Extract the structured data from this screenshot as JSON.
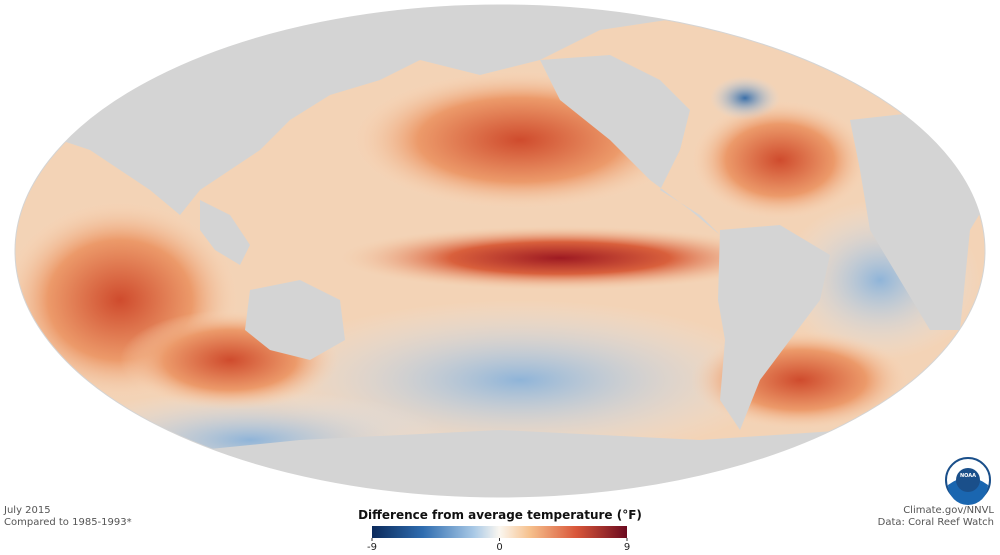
{
  "header": {
    "date": "July 2015",
    "baseline": "Compared to 1985-1993*"
  },
  "colorbar": {
    "title": "Difference from average temperature (°F)",
    "lim": [
      -9,
      9
    ],
    "ticks": [
      -9,
      0,
      9
    ]
  },
  "credits": {
    "source": "Climate.gov/NNVL",
    "data": "Data: Coral Reef Watch",
    "logo": "NOAA"
  }
}
